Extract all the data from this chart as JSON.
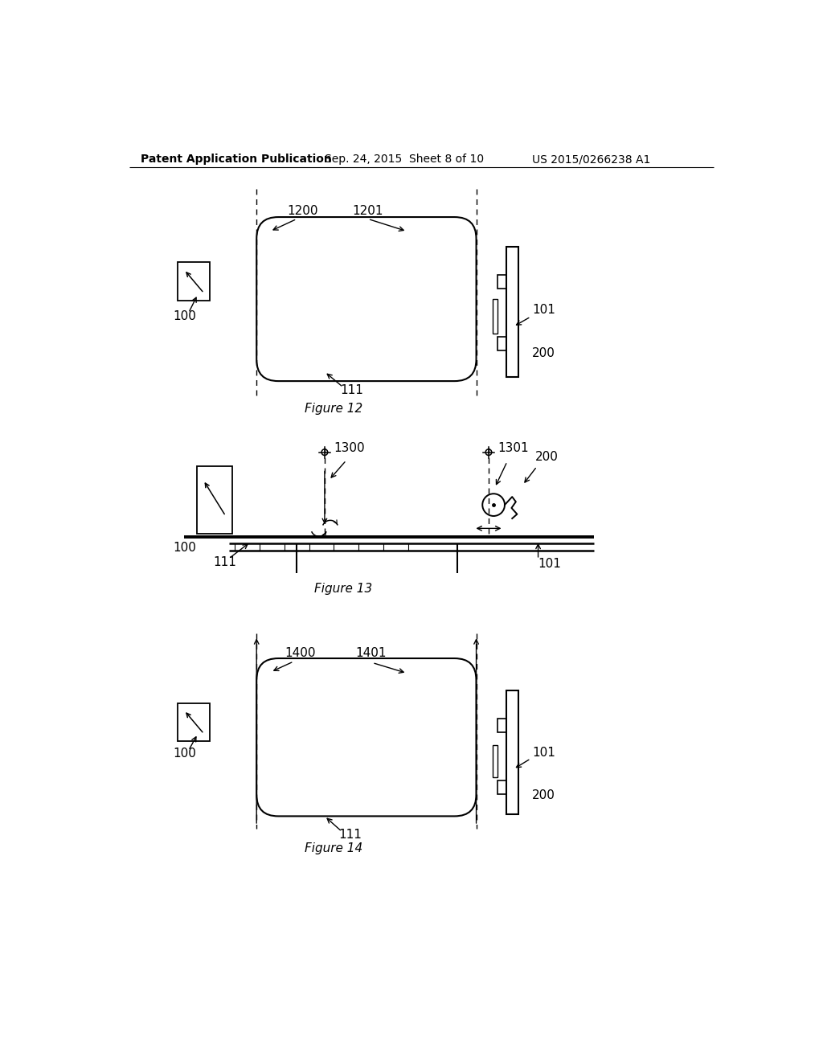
{
  "header_left": "Patent Application Publication",
  "header_mid": "Sep. 24, 2015  Sheet 8 of 10",
  "header_right": "US 2015/0266238 A1",
  "fig12_caption": "Figure 12",
  "fig13_caption": "Figure 13",
  "fig14_caption": "Figure 14",
  "bg_color": "#ffffff",
  "line_color": "#000000",
  "text_color": "#000000"
}
